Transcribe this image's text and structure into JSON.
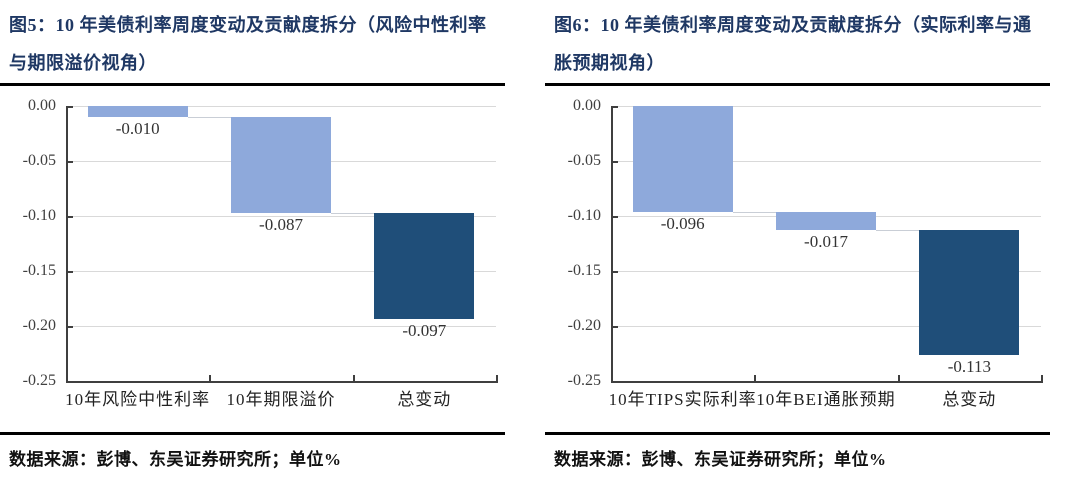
{
  "colors": {
    "component_bar": "#8EA9DB",
    "total_bar": "#1F4E79",
    "title_text": "#1F3864",
    "gridline": "#D9D9D9",
    "axis": "#3F3F3F",
    "separator": "#000000"
  },
  "chart_data": [
    {
      "type": "bar",
      "subtype": "waterfall",
      "title": "图5：10 年美债利率周度变动及贡献度拆分（风险中性利率与期限溢价视角）",
      "categories": [
        "10年风险中性利率",
        "10年期限溢价",
        "总变动"
      ],
      "values": [
        -0.01,
        -0.087,
        -0.097
      ],
      "bars": [
        {
          "category": "10年风险中性利率",
          "value": -0.01,
          "label": "-0.010",
          "from": 0,
          "to": -0.01,
          "role": "component"
        },
        {
          "category": "10年期限溢价",
          "value": -0.087,
          "label": "-0.087",
          "from": -0.01,
          "to": -0.097,
          "role": "component"
        },
        {
          "category": "总变动",
          "value": -0.097,
          "label": "-0.097",
          "from": -0.097,
          "to": -0.194,
          "role": "total"
        }
      ],
      "ylim": [
        -0.25,
        0
      ],
      "yticks": [
        0,
        -0.05,
        -0.1,
        -0.15,
        -0.2,
        -0.25
      ],
      "ytick_labels": [
        "0.00",
        "-0.05",
        "-0.10",
        "-0.15",
        "-0.20",
        "-0.25"
      ],
      "grid": true,
      "legend": "none",
      "xlabel": "",
      "ylabel": "",
      "source_note": "数据来源：彭博、东吴证券研究所；单位%"
    },
    {
      "type": "bar",
      "subtype": "waterfall",
      "title": "图6：10 年美债利率周度变动及贡献度拆分（实际利率与通胀预期视角）",
      "categories": [
        "10年TIPS实际利率",
        "10年BEI通胀预期",
        "总变动"
      ],
      "values": [
        -0.096,
        -0.017,
        -0.113
      ],
      "bars": [
        {
          "category": "10年TIPS实际利率",
          "value": -0.096,
          "label": "-0.096",
          "from": 0,
          "to": -0.096,
          "role": "component"
        },
        {
          "category": "10年BEI通胀预期",
          "value": -0.017,
          "label": "-0.017",
          "from": -0.096,
          "to": -0.113,
          "role": "component"
        },
        {
          "category": "总变动",
          "value": -0.113,
          "label": "-0.113",
          "from": -0.113,
          "to": -0.226,
          "role": "total"
        }
      ],
      "ylim": [
        -0.25,
        0
      ],
      "yticks": [
        0,
        -0.05,
        -0.1,
        -0.15,
        -0.2,
        -0.25
      ],
      "ytick_labels": [
        "0.00",
        "-0.05",
        "-0.10",
        "-0.15",
        "-0.20",
        "-0.25"
      ],
      "grid": true,
      "legend": "none",
      "xlabel": "",
      "ylabel": "",
      "source_note": "数据来源：彭博、东吴证券研究所；单位%"
    }
  ]
}
